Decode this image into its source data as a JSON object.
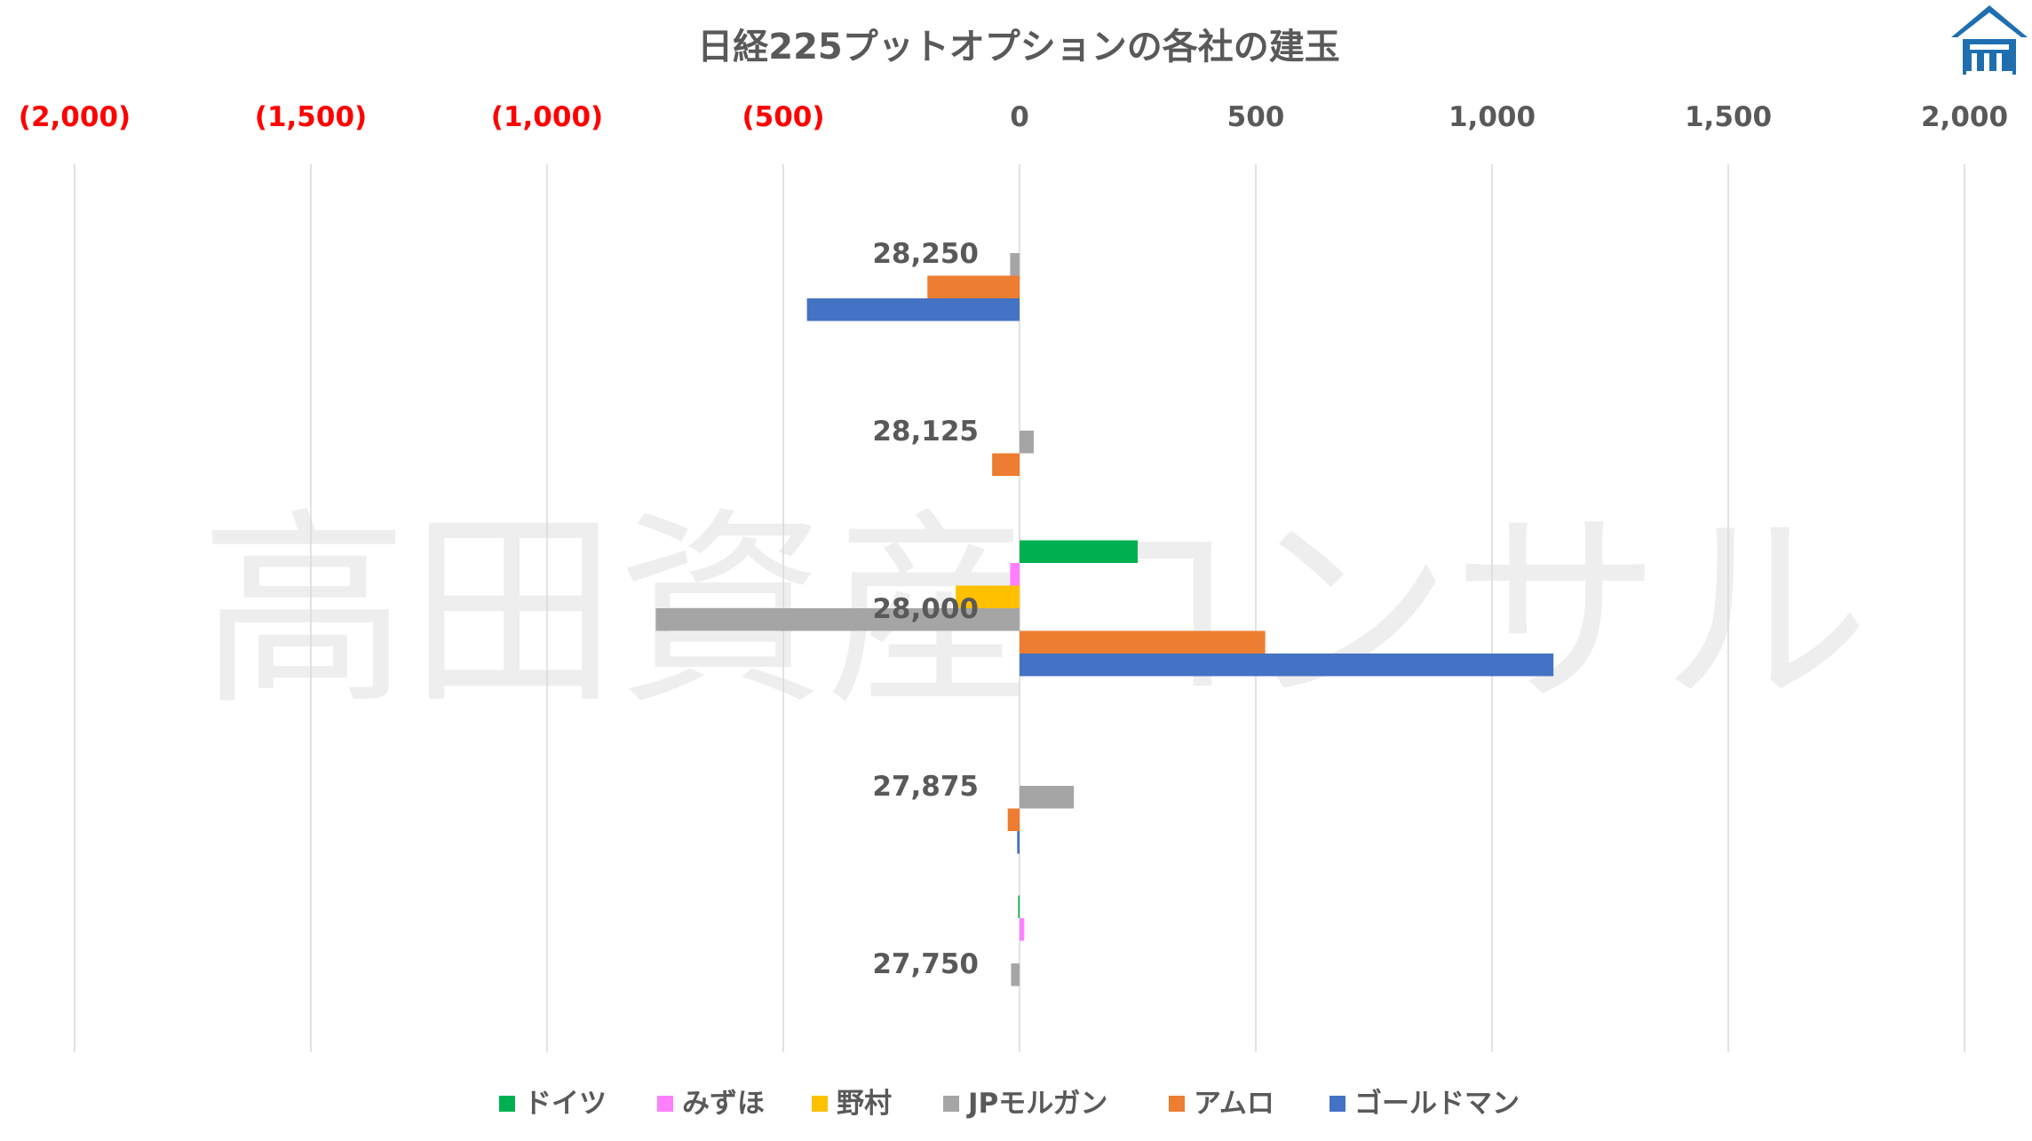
{
  "chart_data": {
    "type": "bar",
    "orientation": "horizontal",
    "title": "日経225プットオプションの各社の建玉",
    "watermark": "高田資産コンサル",
    "xlim": [
      -2000,
      2000
    ],
    "x_ticks": [
      {
        "value": -2000,
        "label": "(2,000)"
      },
      {
        "value": -1500,
        "label": "(1,500)"
      },
      {
        "value": -1000,
        "label": "(1,000)"
      },
      {
        "value": -500,
        "label": "(500)"
      },
      {
        "value": 0,
        "label": "0"
      },
      {
        "value": 500,
        "label": "500"
      },
      {
        "value": 1000,
        "label": "1,000"
      },
      {
        "value": 1500,
        "label": "1,500"
      },
      {
        "value": 2000,
        "label": "2,000"
      }
    ],
    "categories": [
      "28,250",
      "28,125",
      "28,000",
      "27,875",
      "27,750"
    ],
    "series": [
      {
        "name": "ドイツ",
        "color": "#00b050",
        "values": [
          0,
          0,
          250,
          0,
          -3
        ]
      },
      {
        "name": "みずほ",
        "color": "#ff80ff",
        "values": [
          0,
          0,
          -20,
          0,
          10
        ]
      },
      {
        "name": "野村",
        "color": "#ffc000",
        "values": [
          0,
          0,
          -135,
          0,
          0
        ]
      },
      {
        "name": "JPモルガン",
        "color": "#a5a5a5",
        "values": [
          -20,
          30,
          -770,
          115,
          -18
        ]
      },
      {
        "name": "アムロ",
        "color": "#ed7d31",
        "values": [
          -195,
          -58,
          520,
          -25,
          0
        ]
      },
      {
        "name": "ゴールドマン",
        "color": "#4472c4",
        "values": [
          -450,
          0,
          1130,
          -5,
          0
        ]
      }
    ],
    "negative_tick_color": "#ff0000",
    "positive_tick_color": "#595959",
    "grid": true,
    "legend_position": "bottom"
  },
  "logo": {
    "icon": "roof-building-logo-icon",
    "color": "#1f77b4"
  }
}
